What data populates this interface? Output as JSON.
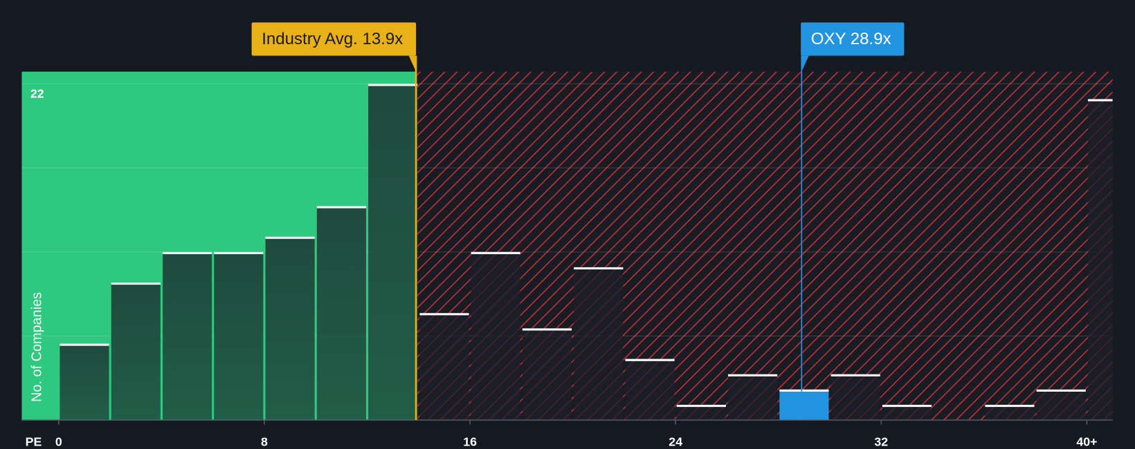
{
  "chart_data": {
    "type": "histogram",
    "x_label": "PE",
    "y_label": "No. of Companies",
    "bins": [
      0,
      2,
      4,
      6,
      8,
      10,
      12,
      14,
      16,
      18,
      20,
      22,
      24,
      26,
      28,
      30,
      32,
      34,
      36,
      38,
      40,
      42
    ],
    "values": [
      5,
      9,
      11,
      11,
      12,
      14,
      22,
      7,
      11,
      6,
      10,
      4,
      1,
      3,
      2,
      3,
      1,
      0,
      1,
      2,
      21
    ],
    "xlim": [
      -1.44,
      41
    ],
    "ylim": [
      0,
      22.8
    ],
    "xticks": [
      0,
      8,
      16,
      24,
      32,
      {
        "value": 40,
        "label": "40+"
      }
    ],
    "yticks": [
      22
    ],
    "grid_lines": [
      5.5,
      11,
      16.5,
      22
    ],
    "colors": {
      "below": "#2ec97e",
      "above": "#c0323a",
      "bar": "#1f4a3e",
      "subject": "#2394e0"
    },
    "annotations": [
      {
        "label": "Industry Avg. 13.9x",
        "value": 13.9,
        "color": "#e8b118"
      },
      {
        "label": "OXY 28.9x",
        "value": 28.9,
        "color": "#2394e0"
      }
    ]
  }
}
